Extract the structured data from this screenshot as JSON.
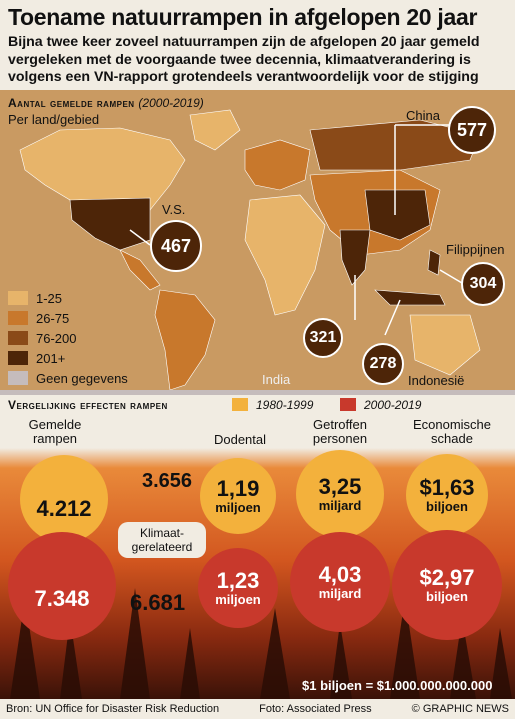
{
  "title": "Toename natuurrampen in afgelopen 20 jaar",
  "subtitle": "Bijna twee keer zoveel natuurrampen zijn de afgelopen 20 jaar gemeld vergeleken met de voorgaande twee decennia, klimaatverandering is volgens een VN-rapport grotendeels verantwoordelijk voor de stijging",
  "map": {
    "heading": "Aantal gemelde rampen",
    "period": "(2000-2019)",
    "subheading": "Per land/gebied",
    "legend": [
      {
        "label": "1-25",
        "color": "#e7b46a"
      },
      {
        "label": "26-75",
        "color": "#c8782c"
      },
      {
        "label": "76-200",
        "color": "#8a4a18"
      },
      {
        "label": "201+",
        "color": "#4d2508"
      },
      {
        "label": "Geen gegevens",
        "color": "#c5bcbc"
      }
    ],
    "callouts": [
      {
        "country": "China",
        "value": "577"
      },
      {
        "country": "V.S.",
        "value": "467"
      },
      {
        "country": "Filippijnen",
        "value": "304"
      },
      {
        "country": "India",
        "value": "321"
      },
      {
        "country": "Indonesië",
        "value": "278"
      }
    ]
  },
  "comparison": {
    "heading": "Vergelijking effecten rampen",
    "period_a": "1980-1999",
    "period_b": "2000-2019",
    "color_a": "#f3b13c",
    "color_b": "#c8392c",
    "columns": [
      {
        "label": "Gemelde rampen",
        "a": "4.212",
        "b": "7.348",
        "a_climate": "3.656",
        "b_climate": "6.681"
      },
      {
        "label": "Dodental",
        "a": "1,19",
        "a_unit": "miljoen",
        "b": "1,23",
        "b_unit": "miljoen"
      },
      {
        "label": "Getroffen personen",
        "a": "3,25",
        "a_unit": "miljard",
        "b": "4,03",
        "b_unit": "miljard"
      },
      {
        "label": "Economische schade",
        "a": "$1,63",
        "a_unit": "biljoen",
        "b": "$2,97",
        "b_unit": "biljoen"
      }
    ],
    "climate_label": "Klimaat-gerelateerd",
    "note": "$1 biljoen = $1.000.000.000.000"
  },
  "footer": {
    "source": "Bron: UN Office for Disaster Risk Reduction",
    "photo": "Foto: Associated Press",
    "copyright": "© GRAPHIC NEWS"
  }
}
